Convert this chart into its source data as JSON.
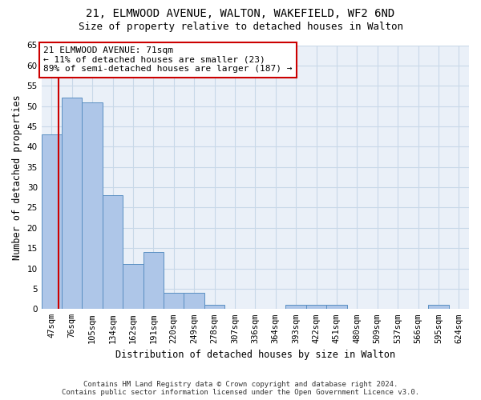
{
  "title_line1": "21, ELMWOOD AVENUE, WALTON, WAKEFIELD, WF2 6ND",
  "title_line2": "Size of property relative to detached houses in Walton",
  "xlabel": "Distribution of detached houses by size in Walton",
  "ylabel": "Number of detached properties",
  "categories": [
    "47sqm",
    "76sqm",
    "105sqm",
    "134sqm",
    "162sqm",
    "191sqm",
    "220sqm",
    "249sqm",
    "278sqm",
    "307sqm",
    "336sqm",
    "364sqm",
    "393sqm",
    "422sqm",
    "451sqm",
    "480sqm",
    "509sqm",
    "537sqm",
    "566sqm",
    "595sqm",
    "624sqm"
  ],
  "values": [
    43,
    52,
    51,
    28,
    11,
    14,
    4,
    4,
    1,
    0,
    0,
    0,
    1,
    1,
    1,
    0,
    0,
    0,
    0,
    1,
    0
  ],
  "bar_color": "#aec6e8",
  "bar_edge_color": "#5a8fc2",
  "annotation_box_text": "21 ELMWOOD AVENUE: 71sqm\n← 11% of detached houses are smaller (23)\n89% of semi-detached houses are larger (187) →",
  "vline_color": "#cc0000",
  "ylim": [
    0,
    65
  ],
  "yticks": [
    0,
    5,
    10,
    15,
    20,
    25,
    30,
    35,
    40,
    45,
    50,
    55,
    60,
    65
  ],
  "grid_color": "#c8d8e8",
  "bg_color": "#eaf0f8",
  "footer_line1": "Contains HM Land Registry data © Crown copyright and database right 2024.",
  "footer_line2": "Contains public sector information licensed under the Open Government Licence v3.0.",
  "title_fontsize": 10,
  "subtitle_fontsize": 9,
  "axis_label_fontsize": 8.5,
  "tick_fontsize": 7.5,
  "annotation_fontsize": 8,
  "footer_fontsize": 6.5
}
